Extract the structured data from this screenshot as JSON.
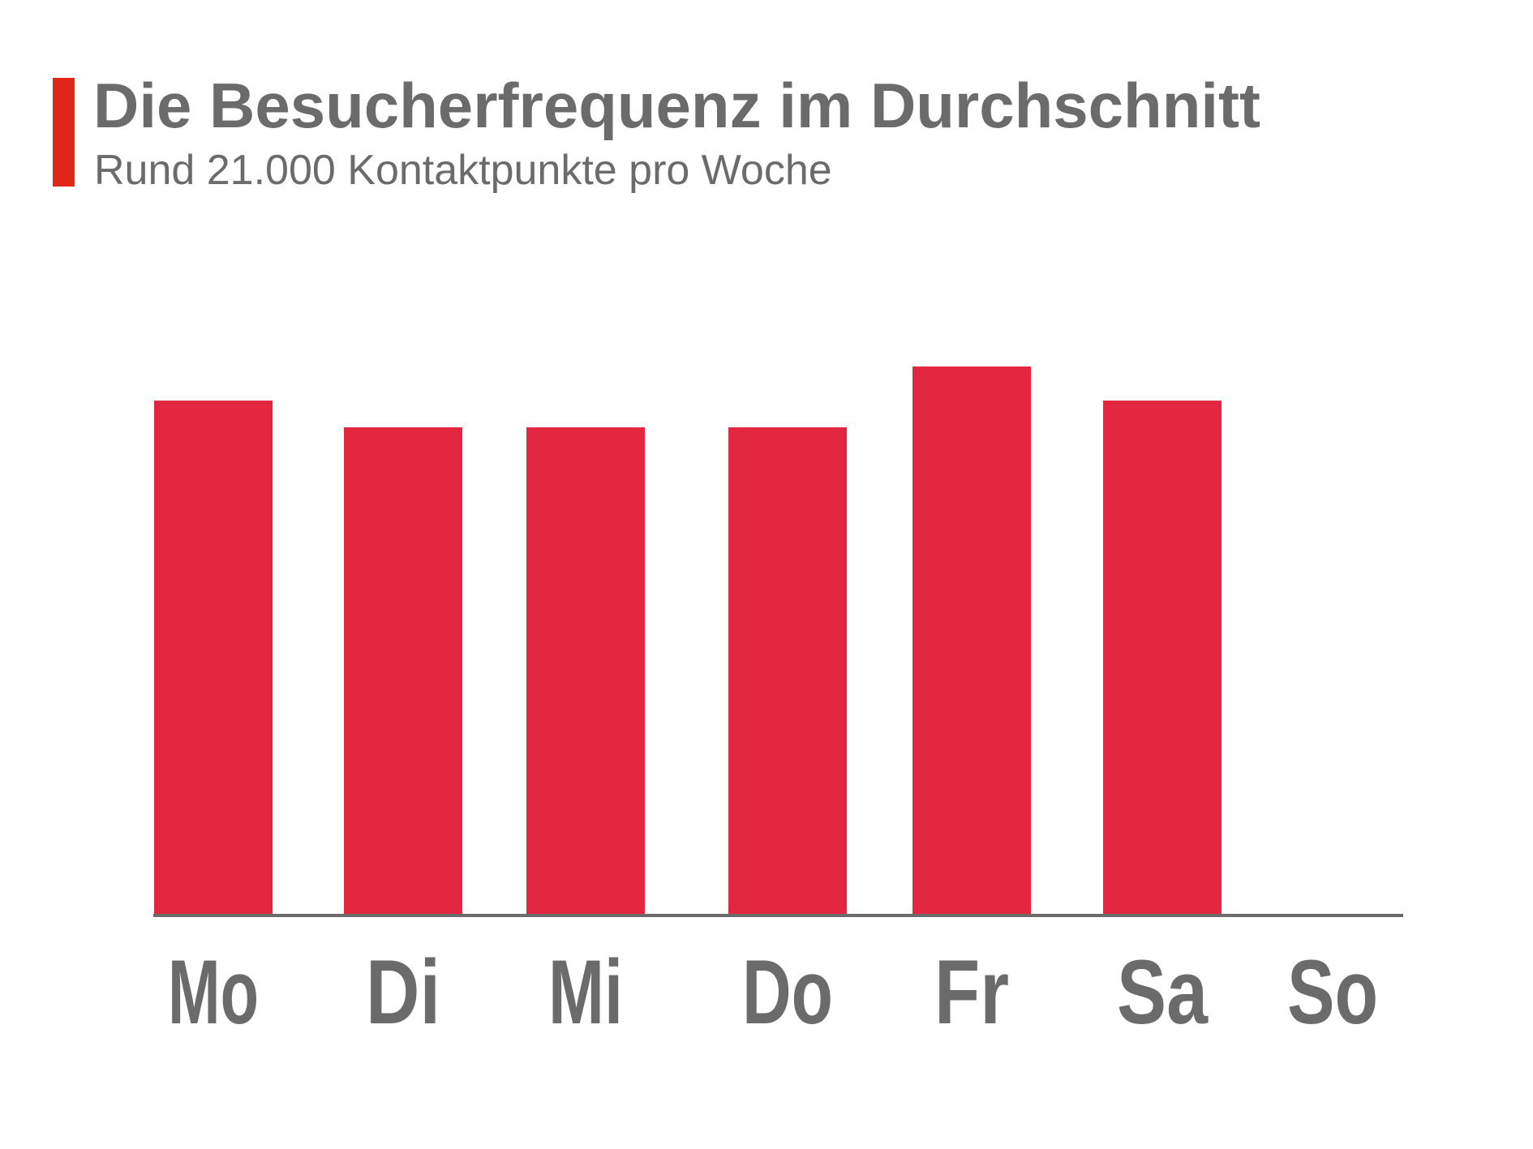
{
  "header": {
    "title": "Die Besucherfrequenz im Durchschnitt",
    "subtitle": "Rund 21.000 Kontaktpunkte pro Woche"
  },
  "colors": {
    "accent": "#e0251b",
    "bar": "#e42741",
    "axis": "#6b6b6b",
    "text": "#6b6b6b"
  },
  "chart_data": {
    "type": "bar",
    "title": "Die Besucherfrequenz im Durchschnitt",
    "subtitle": "Rund 21.000 Kontaktpunkte pro Woche",
    "categories": [
      "Mo",
      "Di",
      "Mi",
      "Do",
      "Fr",
      "Sa",
      "So"
    ],
    "values": [
      3200,
      3030,
      3030,
      3030,
      3410,
      3200,
      0
    ],
    "xlabel": "",
    "ylabel": "",
    "ylim": [
      0,
      3410
    ],
    "grid": false,
    "legend": "none"
  }
}
